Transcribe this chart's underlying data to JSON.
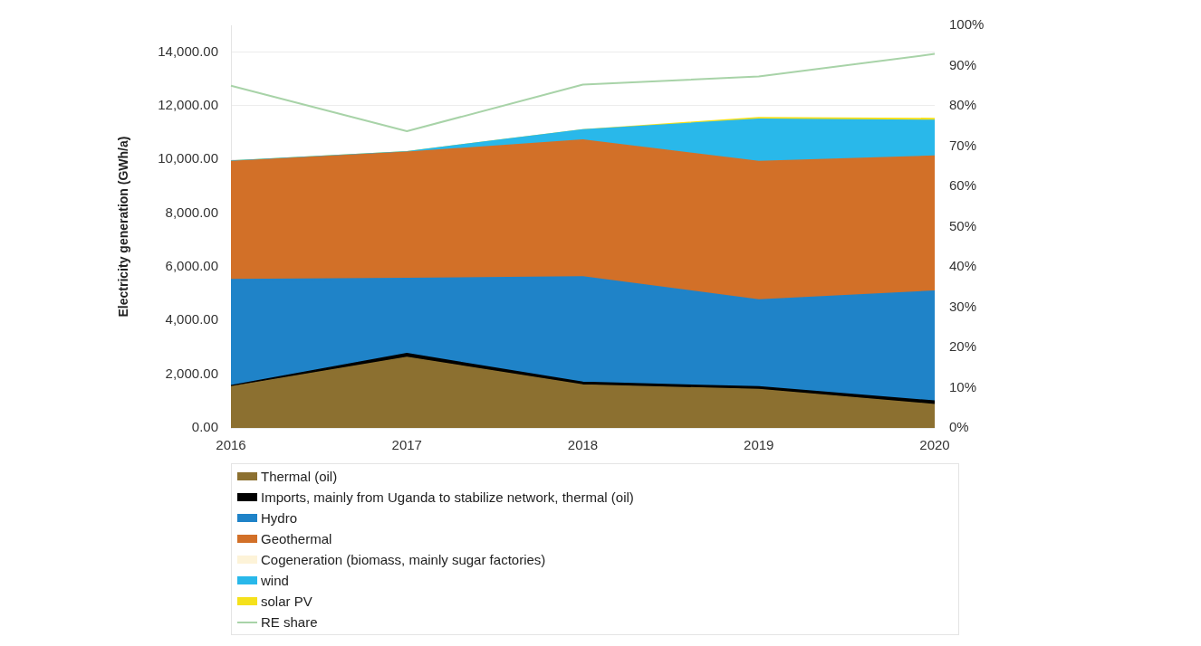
{
  "chart_data": {
    "type": "area",
    "stacked": true,
    "ylabel": "Electricity generation (GWh/a)",
    "categories": [
      "2016",
      "2017",
      "2018",
      "2019",
      "2020"
    ],
    "series": [
      {
        "name": "Thermal (oil)",
        "color": "#8c7030",
        "values": [
          1530,
          2630,
          1600,
          1430,
          870
        ]
      },
      {
        "name": "Imports, mainly from Uganda to stabilize network, thermal (oil)",
        "color": "#000000",
        "values": [
          50,
          140,
          100,
          100,
          130
        ]
      },
      {
        "name": "Hydro",
        "color": "#1f83c8",
        "values": [
          3950,
          2800,
          3930,
          3240,
          4100
        ]
      },
      {
        "name": "Geothermal",
        "color": "#d27028",
        "values": [
          4400,
          4700,
          5100,
          5160,
          5030
        ]
      },
      {
        "name": "Cogeneration (biomass, mainly sugar factories)",
        "color": "#fdf3d8",
        "values": [
          null,
          null,
          null,
          null,
          null
        ]
      },
      {
        "name": "wind",
        "color": "#29b8ea",
        "values": [
          10,
          20,
          380,
          1570,
          1330
        ]
      },
      {
        "name": "solar PV",
        "color": "#f5e11c",
        "values": [
          0,
          0,
          0,
          60,
          70
        ]
      },
      {
        "name": "RE share",
        "type": "line",
        "axis": "y2",
        "color": "#a8d3a8",
        "values": [
          85,
          73.7,
          85.3,
          87.3,
          92.9
        ]
      }
    ],
    "ylim": [
      0,
      15000
    ],
    "yticks": [
      {
        "value": 0,
        "label": "0.00"
      },
      {
        "value": 2000,
        "label": "2,000.00"
      },
      {
        "value": 4000,
        "label": "4,000.00"
      },
      {
        "value": 6000,
        "label": "6,000.00"
      },
      {
        "value": 8000,
        "label": "8,000.00"
      },
      {
        "value": 10000,
        "label": "10,000.00"
      },
      {
        "value": 12000,
        "label": "12,000.00"
      },
      {
        "value": 14000,
        "label": "14,000.00"
      }
    ],
    "y2lim": [
      0,
      100
    ],
    "y2ticks": [
      {
        "value": 0,
        "label": "0%"
      },
      {
        "value": 10,
        "label": "10%"
      },
      {
        "value": 20,
        "label": "20%"
      },
      {
        "value": 30,
        "label": "30%"
      },
      {
        "value": 40,
        "label": "40%"
      },
      {
        "value": 50,
        "label": "50%"
      },
      {
        "value": 60,
        "label": "60%"
      },
      {
        "value": 70,
        "label": "70%"
      },
      {
        "value": 80,
        "label": "80%"
      },
      {
        "value": 90,
        "label": "90%"
      },
      {
        "value": 100,
        "label": "100%"
      }
    ],
    "grid": "y",
    "legend": "bottom"
  }
}
